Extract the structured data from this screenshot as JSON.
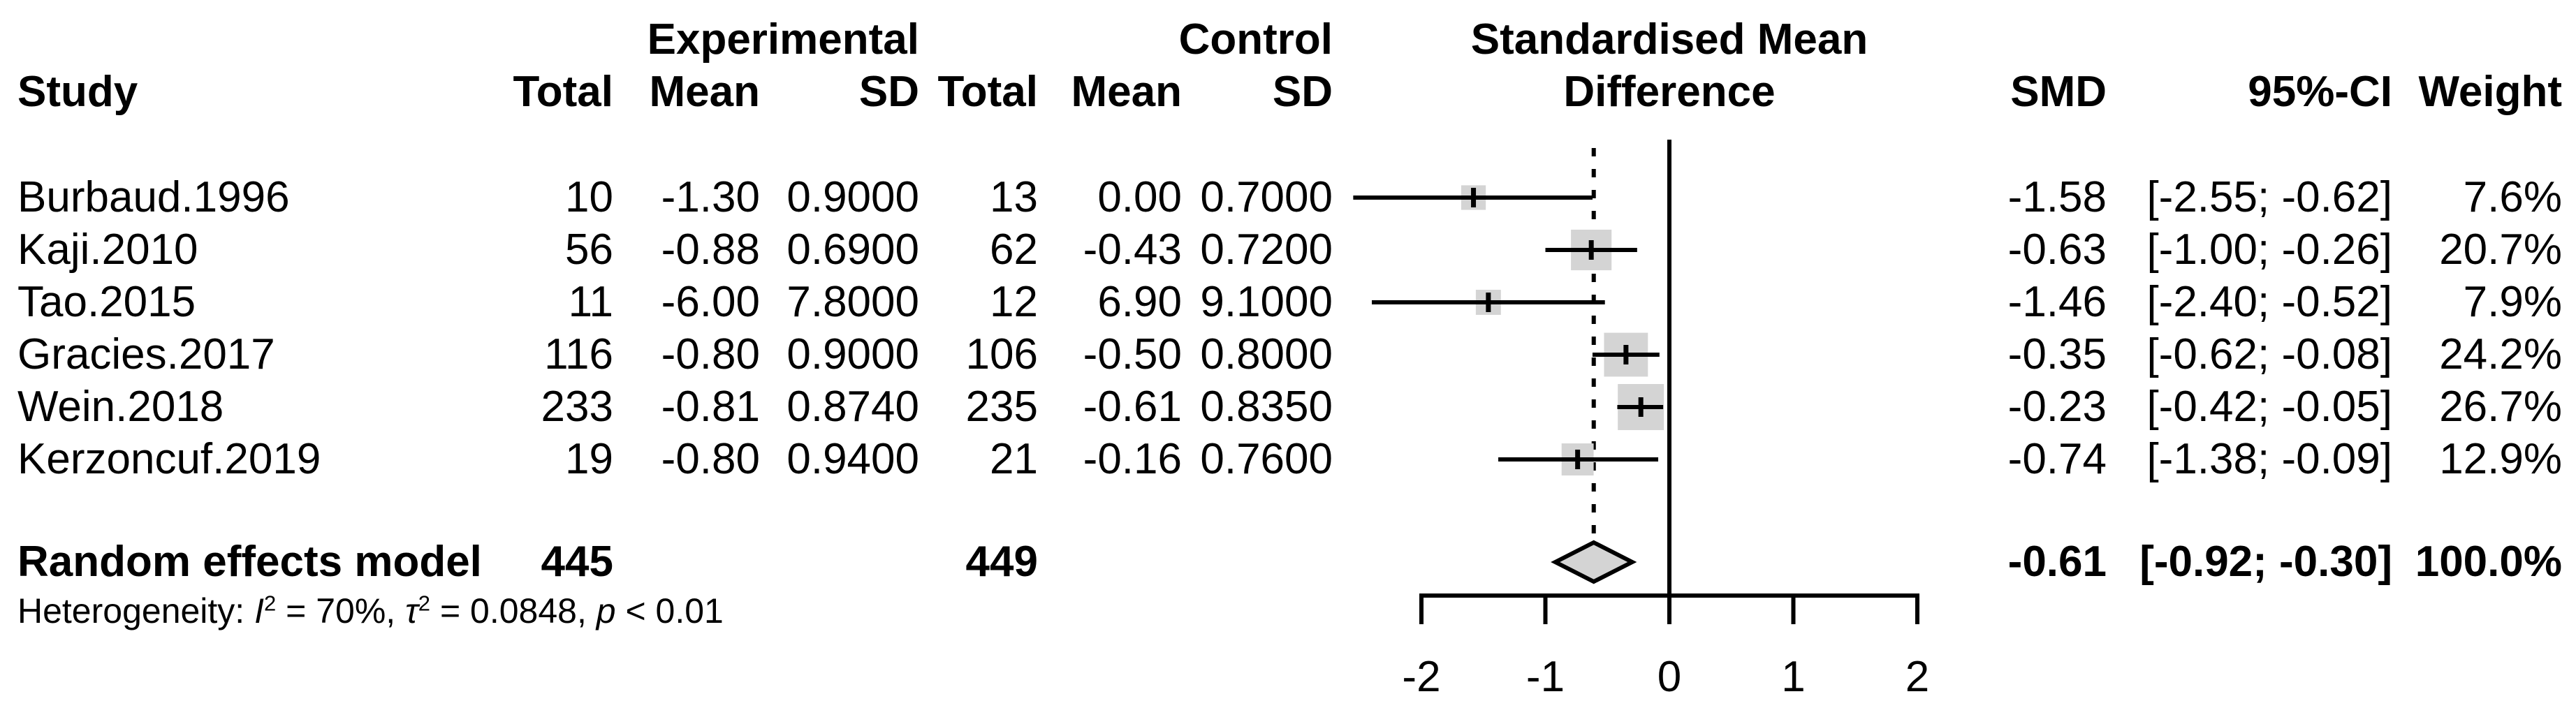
{
  "group_headers": {
    "experimental": "Experimental",
    "control": "Control",
    "smd_line1": "Standardised Mean",
    "smd_line2": "Difference"
  },
  "columns": {
    "study": "Study",
    "exp_total": "Total",
    "exp_mean": "Mean",
    "exp_sd": "SD",
    "ctrl_total": "Total",
    "ctrl_mean": "Mean",
    "ctrl_sd": "SD",
    "smd": "SMD",
    "ci": "95%-CI",
    "weight": "Weight"
  },
  "studies": [
    {
      "name": "Burbaud.1996",
      "exp_total": "10",
      "exp_mean": "-1.30",
      "exp_sd": "0.9000",
      "ctrl_total": "13",
      "ctrl_mean": "0.00",
      "ctrl_sd": "0.7000",
      "smd": "-1.58",
      "ci": "[-2.55; -0.62]",
      "weight": "7.6%"
    },
    {
      "name": "Kaji.2010",
      "exp_total": "56",
      "exp_mean": "-0.88",
      "exp_sd": "0.6900",
      "ctrl_total": "62",
      "ctrl_mean": "-0.43",
      "ctrl_sd": "0.7200",
      "smd": "-0.63",
      "ci": "[-1.00; -0.26]",
      "weight": "20.7%"
    },
    {
      "name": "Tao.2015",
      "exp_total": "11",
      "exp_mean": "-6.00",
      "exp_sd": "7.8000",
      "ctrl_total": "12",
      "ctrl_mean": "6.90",
      "ctrl_sd": "9.1000",
      "smd": "-1.46",
      "ci": "[-2.40; -0.52]",
      "weight": "7.9%"
    },
    {
      "name": "Gracies.2017",
      "exp_total": "116",
      "exp_mean": "-0.80",
      "exp_sd": "0.9000",
      "ctrl_total": "106",
      "ctrl_mean": "-0.50",
      "ctrl_sd": "0.8000",
      "smd": "-0.35",
      "ci": "[-0.62; -0.08]",
      "weight": "24.2%"
    },
    {
      "name": "Wein.2018",
      "exp_total": "233",
      "exp_mean": "-0.81",
      "exp_sd": "0.8740",
      "ctrl_total": "235",
      "ctrl_mean": "-0.61",
      "ctrl_sd": "0.8350",
      "smd": "-0.23",
      "ci": "[-0.42; -0.05]",
      "weight": "26.7%"
    },
    {
      "name": "Kerzoncuf.2019",
      "exp_total": "19",
      "exp_mean": "-0.80",
      "exp_sd": "0.9400",
      "ctrl_total": "21",
      "ctrl_mean": "-0.16",
      "ctrl_sd": "0.7600",
      "smd": "-0.74",
      "ci": "[-1.38; -0.09]",
      "weight": "12.9%"
    }
  ],
  "summary": {
    "label": "Random effects model",
    "exp_total": "445",
    "ctrl_total": "449",
    "smd": "-0.61",
    "ci": "[-0.92; -0.30]",
    "weight": "100.0%"
  },
  "heterogeneity": {
    "prefix": "Heterogeneity: ",
    "i": "I",
    "i_sup": "2",
    "seg1": " = 70%, ",
    "tau": "τ",
    "tau_sup": "2",
    "seg2": " = 0.0848, ",
    "p": "p",
    "seg3": " < 0.01"
  },
  "chart_data": {
    "type": "forest",
    "title": "Standardised Mean Difference",
    "xlabel": "Standardised Mean Difference",
    "xlim": [
      -2,
      2
    ],
    "x_ticks": [
      -2,
      -1,
      0,
      1,
      2
    ],
    "zero_line": 0,
    "pooled_line": -0.61,
    "grid": false,
    "marker_color": "#d4d4d4",
    "studies": [
      {
        "name": "Burbaud.1996",
        "smd": -1.58,
        "ci_lo": -2.55,
        "ci_hi": -0.62,
        "weight_pct": 7.6
      },
      {
        "name": "Kaji.2010",
        "smd": -0.63,
        "ci_lo": -1.0,
        "ci_hi": -0.26,
        "weight_pct": 20.7
      },
      {
        "name": "Tao.2015",
        "smd": -1.46,
        "ci_lo": -2.4,
        "ci_hi": -0.52,
        "weight_pct": 7.9
      },
      {
        "name": "Gracies.2017",
        "smd": -0.35,
        "ci_lo": -0.62,
        "ci_hi": -0.08,
        "weight_pct": 24.2
      },
      {
        "name": "Wein.2018",
        "smd": -0.23,
        "ci_lo": -0.42,
        "ci_hi": -0.05,
        "weight_pct": 26.7
      },
      {
        "name": "Kerzoncuf.2019",
        "smd": -0.74,
        "ci_lo": -1.38,
        "ci_hi": -0.09,
        "weight_pct": 12.9
      }
    ],
    "summary": {
      "name": "Random effects model",
      "smd": -0.61,
      "ci_lo": -0.92,
      "ci_hi": -0.3,
      "weight_pct": 100.0
    }
  }
}
